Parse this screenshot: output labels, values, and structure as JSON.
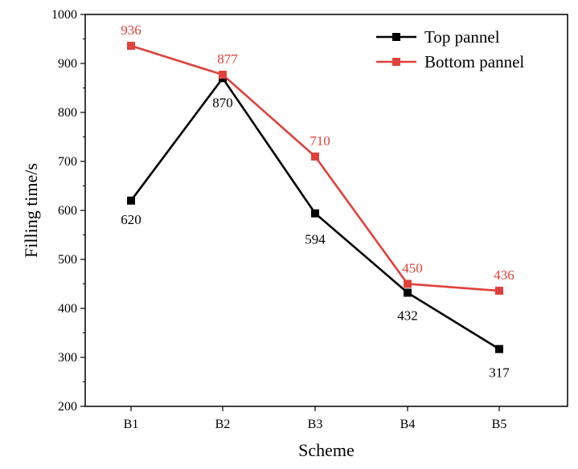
{
  "chart_data": {
    "type": "line",
    "title": "",
    "xlabel": "Scheme",
    "ylabel": "Filling time/s",
    "categories": [
      "B1",
      "B2",
      "B3",
      "B4",
      "B5"
    ],
    "ylim": [
      200,
      1000
    ],
    "yticks": [
      200,
      300,
      400,
      500,
      600,
      700,
      800,
      900,
      1000
    ],
    "legend_position": "top-right",
    "grid": false,
    "series": [
      {
        "name": "Top pannel",
        "color": "#000000",
        "marker": "square",
        "values": [
          620,
          870,
          594,
          432,
          317
        ],
        "labels": [
          "620",
          "870",
          "594",
          "432",
          "317"
        ]
      },
      {
        "name": "Bottom pannel",
        "color": "#e0413a",
        "marker": "square",
        "values": [
          936,
          877,
          710,
          450,
          436
        ],
        "labels": [
          "936",
          "877",
          "710",
          "450",
          "436"
        ]
      }
    ]
  }
}
